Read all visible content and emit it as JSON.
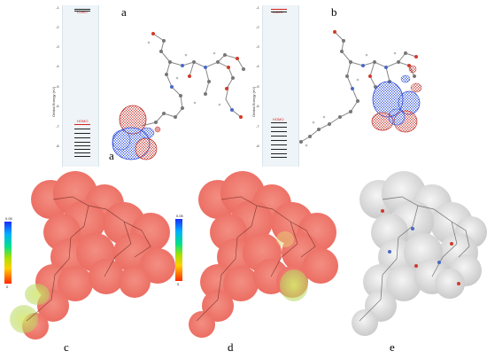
{
  "labels": {
    "a": "a",
    "b": "b",
    "c": "c",
    "d": "d",
    "e": "e"
  },
  "energy_diagram": {
    "axis_title": "Orbital Energy (eV)",
    "ticks": [
      "-1",
      "-2",
      "-3",
      "-4",
      "-5",
      "-6",
      "-7",
      "-8"
    ],
    "homo": "HOMO",
    "lumo": "LUMO"
  },
  "colorbar": {
    "top": "0.05",
    "bottom": "0"
  },
  "colors": {
    "surface_red": "#ee6a5e",
    "surface_green": "#b9dc5e",
    "surface_gray": "#c4c4c4",
    "lobe_blue": "#2a4bd8",
    "lobe_red": "#c0302a"
  }
}
